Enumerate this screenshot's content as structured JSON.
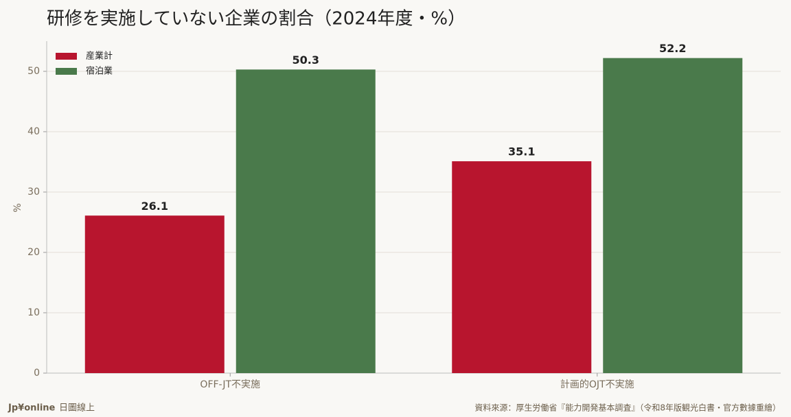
{
  "chart_data": {
    "type": "bar",
    "title": "研修を実施していない企業の割合（2024年度・%）",
    "y_label": "%",
    "categories": [
      "OFF-JT不実施",
      "計画的OJT不実施"
    ],
    "series": [
      {
        "name": "産業計",
        "color": "#b8152e",
        "values": [
          26.1,
          35.1
        ]
      },
      {
        "name": "宿泊業",
        "color": "#4a7a4b",
        "values": [
          50.3,
          52.2
        ]
      }
    ],
    "ylim": [
      0,
      55
    ],
    "yticks": [
      0,
      10,
      20,
      30,
      40,
      50
    ],
    "grid": true,
    "legend": "upper-left",
    "brand": "Jp¥online",
    "brand_sub": "日圖線上",
    "source": "資料來源：厚生労働省『能力開発基本調査』（令和8年版観光白書・官方數據重繪）"
  }
}
